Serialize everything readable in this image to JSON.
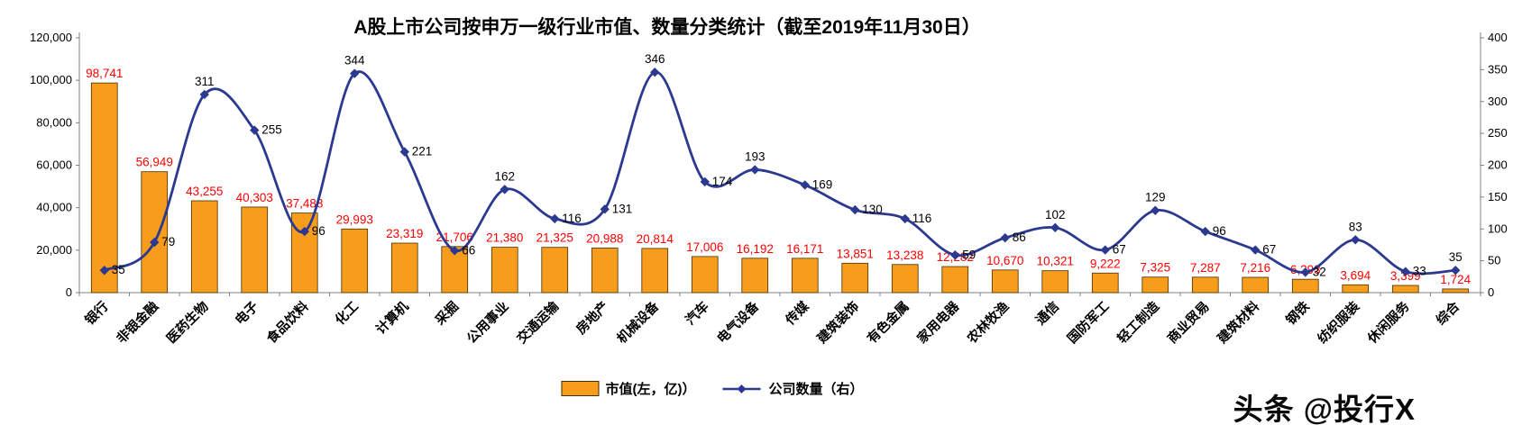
{
  "title": "A股上市公司按申万一级行业市值、数量分类统计（截至2019年11月30日）",
  "watermark": "头条 @投行X",
  "legend": {
    "bar_label": "市值(左，亿)）",
    "line_label": "公司数量（右）"
  },
  "colors": {
    "bar": "#F89C1C",
    "bar_border": "#403000",
    "line": "#2B3990",
    "bar_value": "#FF0000",
    "axis_text": "#000000",
    "axis_line": "#808080"
  },
  "chart_data": {
    "type": "bar+line",
    "title": "A股上市公司按申万一级行业市值、数量分类统计（截至2019年11月30日）",
    "categories": [
      "银行",
      "非银金融",
      "医药生物",
      "电子",
      "食品饮料",
      "化工",
      "计算机",
      "采掘",
      "公用事业",
      "交通运输",
      "房地产",
      "机械设备",
      "汽车",
      "电气设备",
      "传媒",
      "建筑装饰",
      "有色金属",
      "家用电器",
      "农林牧渔",
      "通信",
      "国防军工",
      "轻工制造",
      "商业贸易",
      "建筑材料",
      "钢铁",
      "纺织服装",
      "休闲服务",
      "综合"
    ],
    "series": [
      {
        "name": "市值(左，亿)）",
        "chart": "bar",
        "axis": "left",
        "color": "#F89C1C",
        "values": [
          98741,
          56949,
          43255,
          40303,
          37488,
          29993,
          23319,
          21706,
          21380,
          21325,
          20988,
          20814,
          17006,
          16192,
          16171,
          13851,
          13238,
          12282,
          10670,
          10321,
          9222,
          7325,
          7287,
          7216,
          6293,
          3694,
          3399,
          1724
        ]
      },
      {
        "name": "公司数量（右）",
        "chart": "line",
        "axis": "right",
        "color": "#2B3990",
        "values": [
          35,
          79,
          311,
          255,
          96,
          344,
          221,
          66,
          162,
          116,
          131,
          346,
          174,
          193,
          169,
          130,
          116,
          59,
          86,
          102,
          67,
          129,
          96,
          67,
          32,
          83,
          33,
          35
        ]
      }
    ],
    "left_axis": {
      "min": 0,
      "max": 120000,
      "step": 20000,
      "tick_labels": [
        "0",
        "20,000",
        "40,000",
        "60,000",
        "80,000",
        "100,000",
        "120,000"
      ]
    },
    "right_axis": {
      "min": 0,
      "max": 400,
      "step": 50,
      "tick_labels": [
        "0",
        "50",
        "100",
        "150",
        "200",
        "250",
        "300",
        "350",
        "400"
      ]
    },
    "grid": false,
    "legend_position": "bottom"
  }
}
